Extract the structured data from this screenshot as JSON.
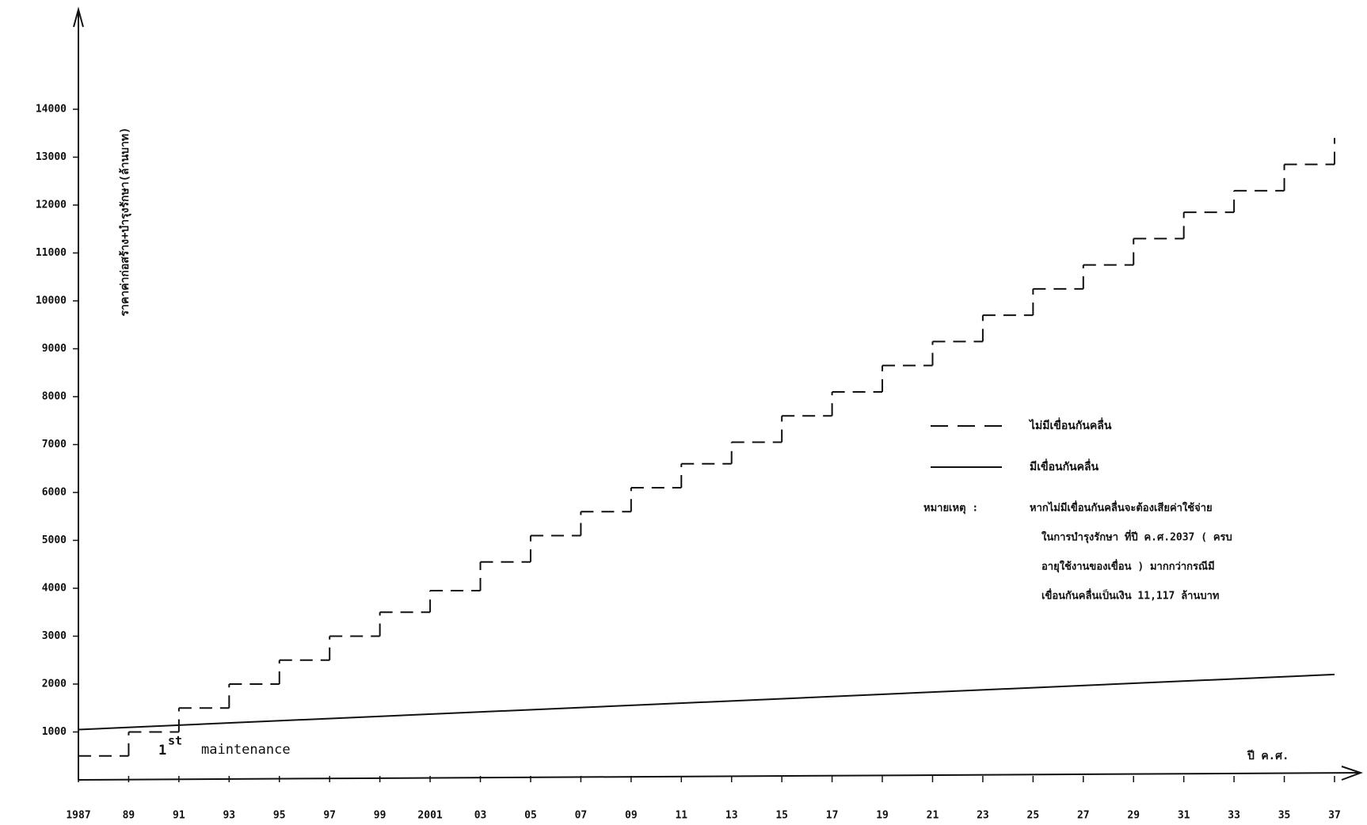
{
  "chart_data": {
    "type": "step-line",
    "y_label": "ราคาค่าก่อสร้าง+บำรุงรักษา(ล้านบาท)",
    "x_label": "ปี ค.ศ.",
    "annotation": {
      "base": "1",
      "sup": "st",
      "text": "maintenance"
    },
    "note_label": "หมายเหตุ :",
    "note_lines": [
      "หากไม่มีเขื่อนกันคลื่นจะต้องเสียค่าใช้จ่าย",
      "ในการบำรุงรักษา ที่ปี ค.ศ.2037 ( ครบ",
      "อายุใช้งานของเขื่อน ) มากกว่ากรณีมี",
      "เขื่อนกันคลื่นเป็นเงิน 11,117 ล้านบาท"
    ],
    "xlim": [
      1987,
      2037
    ],
    "xticks": [
      1987,
      {
        "value": 1989,
        "label": "89"
      },
      {
        "value": 1991,
        "label": "91"
      },
      {
        "value": 1993,
        "label": "93"
      },
      {
        "value": 1995,
        "label": "95"
      },
      {
        "value": 1997,
        "label": "97"
      },
      {
        "value": 1999,
        "label": "99"
      },
      2001,
      {
        "value": 2003,
        "label": "03"
      },
      {
        "value": 2005,
        "label": "05"
      },
      {
        "value": 2007,
        "label": "07"
      },
      {
        "value": 2009,
        "label": "09"
      },
      {
        "value": 2011,
        "label": "11"
      },
      {
        "value": 2013,
        "label": "13"
      },
      {
        "value": 2015,
        "label": "15"
      },
      {
        "value": 2017,
        "label": "17"
      },
      {
        "value": 2019,
        "label": "19"
      },
      {
        "value": 2021,
        "label": "21"
      },
      {
        "value": 2023,
        "label": "23"
      },
      {
        "value": 2025,
        "label": "25"
      },
      {
        "value": 2027,
        "label": "27"
      },
      {
        "value": 2029,
        "label": "29"
      },
      {
        "value": 2031,
        "label": "31"
      },
      {
        "value": 2033,
        "label": "33"
      },
      {
        "value": 2035,
        "label": "35"
      },
      {
        "value": 2037,
        "label": "37"
      }
    ],
    "ylim": [
      0,
      16000
    ],
    "yticks": [
      1000,
      2000,
      3000,
      4000,
      5000,
      6000,
      7000,
      8000,
      9000,
      10000,
      11000,
      12000,
      13000,
      14000
    ],
    "series": [
      {
        "name": "ไม่มีเขื่อนกันคลื่น",
        "color": "#111111",
        "dash": true,
        "x": [
          1987,
          1989,
          1991,
          1993,
          1995,
          1997,
          1999,
          2001,
          2003,
          2005,
          2007,
          2009,
          2011,
          2013,
          2015,
          2017,
          2019,
          2021,
          2023,
          2025,
          2027,
          2029,
          2031,
          2033,
          2035,
          2037
        ],
        "values": [
          500,
          1000,
          1500,
          2000,
          2500,
          3000,
          3500,
          3950,
          4550,
          5100,
          5600,
          6100,
          6600,
          7050,
          7600,
          8100,
          8650,
          9150,
          9700,
          10250,
          10750,
          11300,
          11850,
          12300,
          12850,
          13400
        ]
      },
      {
        "name": "มีเขื่อนกันคลื่น",
        "color": "#111111",
        "dash": false,
        "x": [
          1987,
          2037
        ],
        "values": [
          1050,
          2200
        ]
      }
    ]
  }
}
